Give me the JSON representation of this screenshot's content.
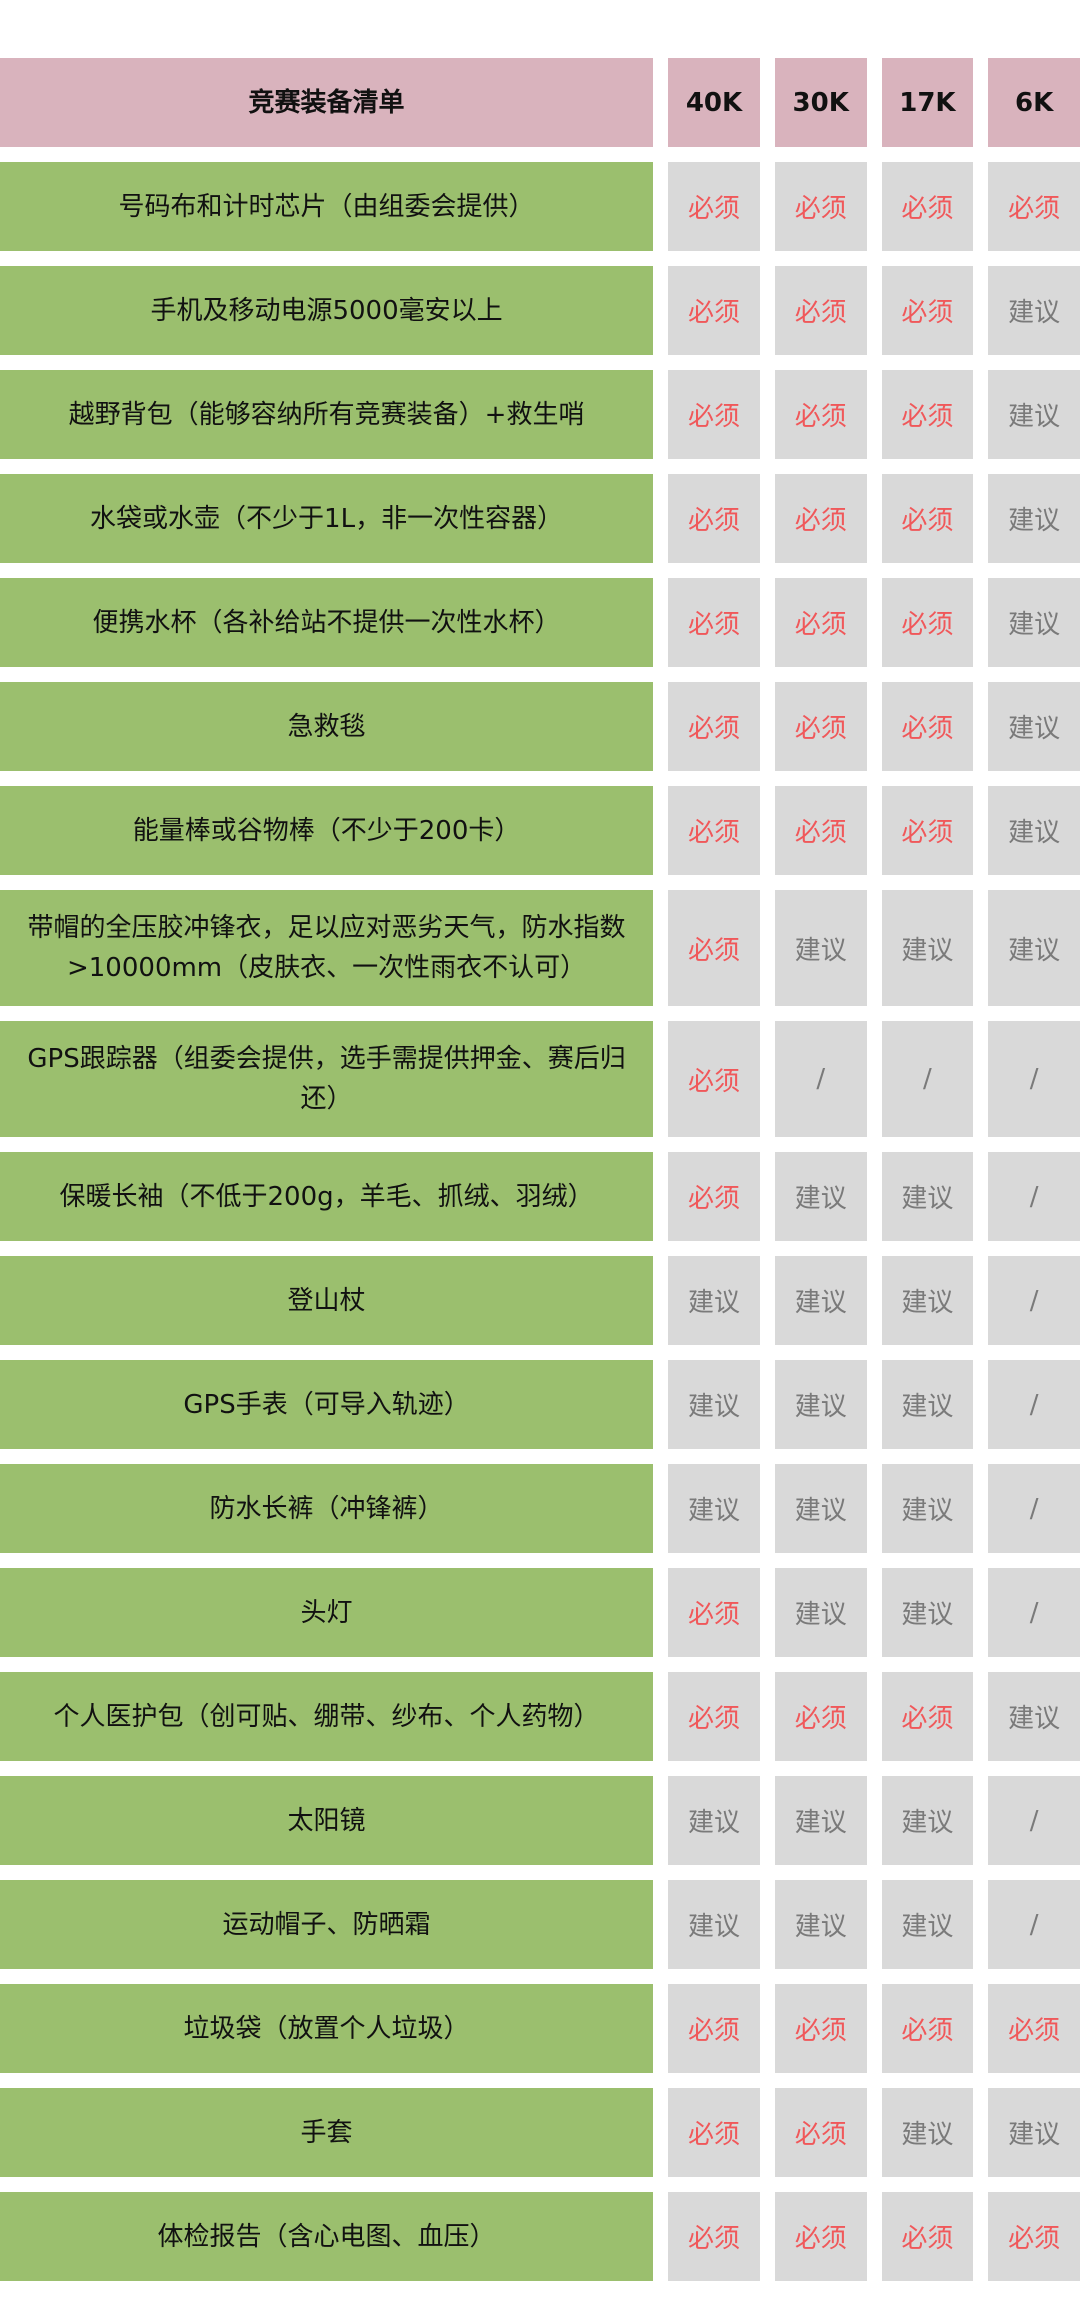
{
  "header": {
    "title": "竞赛装备清单",
    "columns": [
      "40K",
      "30K",
      "17K",
      "6K"
    ]
  },
  "colors": {
    "header_bg": "#d9b3bd",
    "item_bg": "#9bbf6e",
    "value_bg": "#d9d9d9",
    "required_text": "#f0585a",
    "suggested_text": "#7a7a7a"
  },
  "rows": [
    {
      "item": "号码布和计时芯片（由组委会提供）",
      "values": [
        "必须",
        "必须",
        "必须",
        "必须"
      ]
    },
    {
      "item": "手机及移动电源5000毫安以上",
      "values": [
        "必须",
        "必须",
        "必须",
        "建议"
      ]
    },
    {
      "item": "越野背包（能够容纳所有竞赛装备）+救生哨",
      "values": [
        "必须",
        "必须",
        "必须",
        "建议"
      ]
    },
    {
      "item": "水袋或水壶（不少于1L，非一次性容器）",
      "values": [
        "必须",
        "必须",
        "必须",
        "建议"
      ]
    },
    {
      "item": "便携水杯（各补给站不提供一次性水杯）",
      "values": [
        "必须",
        "必须",
        "必须",
        "建议"
      ]
    },
    {
      "item": "急救毯",
      "values": [
        "必须",
        "必须",
        "必须",
        "建议"
      ]
    },
    {
      "item": "能量棒或谷物棒（不少于200卡）",
      "values": [
        "必须",
        "必须",
        "必须",
        "建议"
      ]
    },
    {
      "item": "带帽的全压胶冲锋衣，足以应对恶劣天气，防水指数>10000mm（皮肤衣、一次性雨衣不认可）",
      "values": [
        "必须",
        "建议",
        "建议",
        "建议"
      ],
      "tall": true
    },
    {
      "item": "GPS跟踪器（组委会提供，选手需提供押金、赛后归还）",
      "values": [
        "必须",
        "/",
        "/",
        "/"
      ],
      "tall": true
    },
    {
      "item": "保暖长袖（不低于200g，羊毛、抓绒、羽绒）",
      "values": [
        "必须",
        "建议",
        "建议",
        "/"
      ]
    },
    {
      "item": "登山杖",
      "values": [
        "建议",
        "建议",
        "建议",
        "/"
      ]
    },
    {
      "item": "GPS手表（可导入轨迹）",
      "values": [
        "建议",
        "建议",
        "建议",
        "/"
      ]
    },
    {
      "item": "防水长裤（冲锋裤）",
      "values": [
        "建议",
        "建议",
        "建议",
        "/"
      ]
    },
    {
      "item": "头灯",
      "values": [
        "必须",
        "建议",
        "建议",
        "/"
      ]
    },
    {
      "item": "个人医护包（创可贴、绷带、纱布、个人药物）",
      "values": [
        "必须",
        "必须",
        "必须",
        "建议"
      ]
    },
    {
      "item": "太阳镜",
      "values": [
        "建议",
        "建议",
        "建议",
        "/"
      ]
    },
    {
      "item": "运动帽子、防晒霜",
      "values": [
        "建议",
        "建议",
        "建议",
        "/"
      ]
    },
    {
      "item": "垃圾袋（放置个人垃圾）",
      "values": [
        "必须",
        "必须",
        "必须",
        "必须"
      ]
    },
    {
      "item": "手套",
      "values": [
        "必须",
        "必须",
        "建议",
        "建议"
      ]
    },
    {
      "item": "体检报告（含心电图、血压）",
      "values": [
        "必须",
        "必须",
        "必须",
        "必须"
      ]
    }
  ]
}
